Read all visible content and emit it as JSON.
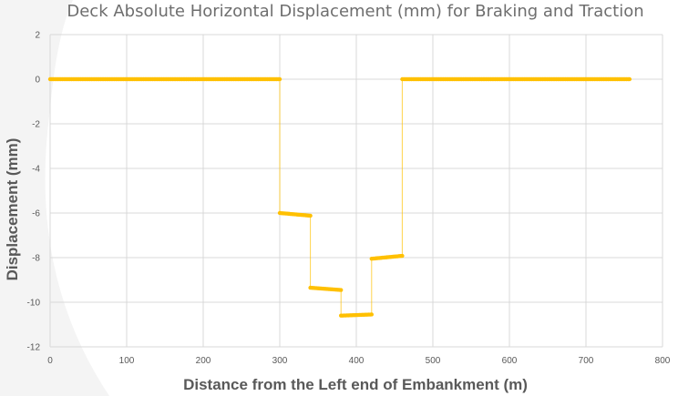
{
  "chart_data": {
    "type": "scatter",
    "title": "Deck Absolute Horizontal Displacement (mm) for Braking and Traction",
    "xlabel": "Distance from the Left end of Embankment (m)",
    "ylabel": "Displacement (mm)",
    "xlim": [
      0,
      800
    ],
    "ylim": [
      -12,
      2
    ],
    "x_ticks": [
      0,
      100,
      200,
      300,
      400,
      500,
      600,
      700,
      800
    ],
    "y_ticks": [
      2,
      0,
      -2,
      -4,
      -6,
      -8,
      -10,
      -12
    ],
    "grid": true,
    "legend": "none",
    "colors": {
      "series": "#ffc000",
      "grid": "#d9d9d9",
      "text": "#595959"
    },
    "series": [
      {
        "segments": [
          {
            "x_start": 0,
            "x_end": 300,
            "y_start": 0,
            "y_end": 0
          },
          {
            "x_start": 300,
            "x_end": 340,
            "y_start": -6.0,
            "y_end": -6.12
          },
          {
            "x_start": 340,
            "x_end": 380,
            "y_start": -9.35,
            "y_end": -9.45
          },
          {
            "x_start": 380,
            "x_end": 420,
            "y_start": -10.6,
            "y_end": -10.55
          },
          {
            "x_start": 420,
            "x_end": 460,
            "y_start": -8.05,
            "y_end": -7.92
          },
          {
            "x_start": 460,
            "x_end": 757,
            "y_start": 0,
            "y_end": 0
          }
        ],
        "point_spacing": 2
      }
    ]
  }
}
